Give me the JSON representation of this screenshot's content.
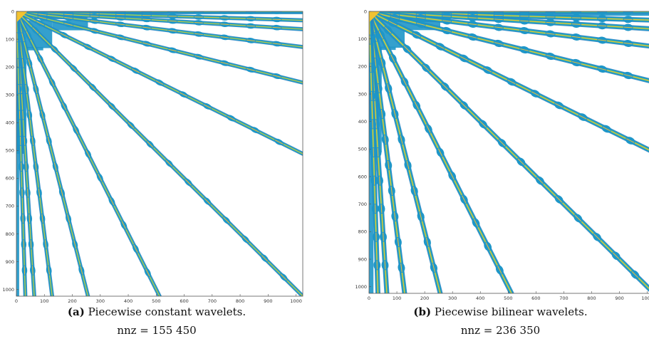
{
  "colors": {
    "spine": "#f2c230",
    "core": "#3cba9a",
    "body": "#1e96c8",
    "edge": "#2a7fbf",
    "axis": "#555555"
  },
  "chart_data": [
    {
      "type": "heatmap",
      "caption_tag": "(a)",
      "caption_text": "Piecewise constant wavelets.",
      "nnz_text": "nnz = 155 450",
      "xlim": [
        0,
        1024
      ],
      "ylim": [
        0,
        1024
      ],
      "xticks": [
        0,
        100,
        200,
        300,
        400,
        500,
        600,
        700,
        800,
        900,
        1000
      ],
      "yticks": [
        0,
        100,
        200,
        300,
        400,
        500,
        600,
        700,
        800,
        900,
        1000
      ],
      "ray_ends": [
        [
          1024,
          0
        ],
        [
          1024,
          32
        ],
        [
          1024,
          64
        ],
        [
          1024,
          128
        ],
        [
          1024,
          256
        ],
        [
          1024,
          512
        ],
        [
          1024,
          1024
        ],
        [
          512,
          1024
        ],
        [
          256,
          1024
        ],
        [
          128,
          1024
        ],
        [
          64,
          1024
        ],
        [
          32,
          1024
        ]
      ],
      "bilinear": false
    },
    {
      "type": "heatmap",
      "caption_tag": "(b)",
      "caption_text": "Piecewise bilinear wavelets.",
      "nnz_text": "nnz = 236 350",
      "xlim": [
        0,
        1024
      ],
      "ylim": [
        0,
        1024
      ],
      "xticks": [
        0,
        100,
        200,
        300,
        400,
        500,
        600,
        700,
        800,
        900,
        1000
      ],
      "yticks": [
        0,
        100,
        200,
        300,
        400,
        500,
        600,
        700,
        800,
        900,
        1000
      ],
      "ray_ends": [
        [
          1024,
          0
        ],
        [
          1024,
          32
        ],
        [
          1024,
          64
        ],
        [
          1024,
          128
        ],
        [
          1024,
          256
        ],
        [
          1024,
          512
        ],
        [
          1024,
          1024
        ],
        [
          512,
          1024
        ],
        [
          256,
          1024
        ],
        [
          128,
          1024
        ],
        [
          64,
          1024
        ],
        [
          32,
          1024
        ]
      ],
      "bilinear": true
    }
  ]
}
